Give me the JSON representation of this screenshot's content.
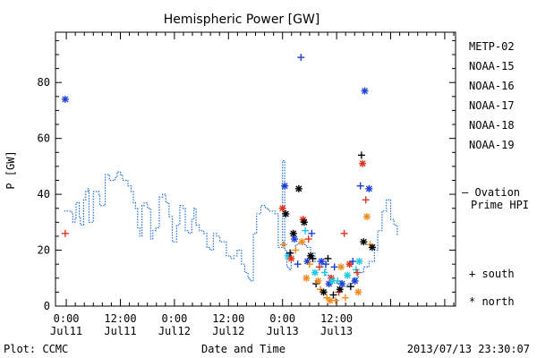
{
  "chart_data": {
    "type": "scatter",
    "title": "Hemispheric Power [GW]",
    "xlabel": "Date and Time",
    "ylabel": "P [GW]",
    "ylim": [
      0,
      98
    ],
    "yticks": [
      0,
      20,
      40,
      60,
      80
    ],
    "xlim": [
      -0.1,
      3.6
    ],
    "xticks": [
      {
        "x": 0.0,
        "line1": "0:00",
        "line2": "Jul11"
      },
      {
        "x": 0.5,
        "line1": "12:00",
        "line2": "Jul11"
      },
      {
        "x": 1.0,
        "line1": "0:00",
        "line2": "Jul12"
      },
      {
        "x": 1.5,
        "line1": "12:00",
        "line2": "Jul12"
      },
      {
        "x": 2.0,
        "line1": "0:00",
        "line2": "Jul13"
      },
      {
        "x": 2.5,
        "line1": "12:00",
        "line2": "Jul13"
      }
    ],
    "footer_left": "Plot: CCMC",
    "footer_right": "2013/07/13 23:30:07",
    "legend": {
      "satellites": [
        {
          "name": "METP-02",
          "color": "#000000"
        },
        {
          "name": "NOAA-15",
          "color": "#1f3fd9"
        },
        {
          "name": "NOAA-16",
          "color": "#1fc8e0"
        },
        {
          "name": "NOAA-17",
          "color": "#3ddc7a"
        },
        {
          "name": "NOAA-18",
          "color": "#f08c1e"
        },
        {
          "name": "NOAA-19",
          "color": "#e0321e"
        }
      ],
      "ovation_line1": "– Ovation",
      "ovation_line2": "Prime HPI",
      "ovation_color": "#1f6fd9",
      "south_label": "+ south",
      "north_label": "* north"
    },
    "ovation_series": [
      [
        -0.02,
        34
      ],
      [
        0.03,
        34
      ],
      [
        0.05,
        33
      ],
      [
        0.06,
        30
      ],
      [
        0.08,
        31
      ],
      [
        0.09,
        37
      ],
      [
        0.11,
        37
      ],
      [
        0.12,
        32
      ],
      [
        0.13,
        29
      ],
      [
        0.15,
        29
      ],
      [
        0.16,
        38
      ],
      [
        0.18,
        41
      ],
      [
        0.2,
        42
      ],
      [
        0.21,
        30
      ],
      [
        0.23,
        30
      ],
      [
        0.25,
        41
      ],
      [
        0.28,
        41
      ],
      [
        0.3,
        40
      ],
      [
        0.31,
        36
      ],
      [
        0.34,
        36
      ],
      [
        0.36,
        47
      ],
      [
        0.4,
        45
      ],
      [
        0.43,
        45
      ],
      [
        0.45,
        46
      ],
      [
        0.47,
        48
      ],
      [
        0.5,
        47
      ],
      [
        0.52,
        45
      ],
      [
        0.54,
        45
      ],
      [
        0.57,
        43
      ],
      [
        0.6,
        41
      ],
      [
        0.62,
        37
      ],
      [
        0.64,
        35
      ],
      [
        0.66,
        28
      ],
      [
        0.68,
        25
      ],
      [
        0.7,
        36
      ],
      [
        0.72,
        37
      ],
      [
        0.75,
        35
      ],
      [
        0.78,
        24
      ],
      [
        0.8,
        27
      ],
      [
        0.83,
        28
      ],
      [
        0.86,
        39
      ],
      [
        0.89,
        40
      ],
      [
        0.92,
        37
      ],
      [
        0.95,
        32
      ],
      [
        0.98,
        23
      ],
      [
        1.0,
        23
      ],
      [
        1.02,
        29
      ],
      [
        1.05,
        36
      ],
      [
        1.08,
        35
      ],
      [
        1.1,
        27
      ],
      [
        1.13,
        26
      ],
      [
        1.16,
        31
      ],
      [
        1.18,
        35
      ],
      [
        1.2,
        29
      ],
      [
        1.23,
        27
      ],
      [
        1.27,
        26
      ],
      [
        1.3,
        21
      ],
      [
        1.33,
        20
      ],
      [
        1.36,
        26
      ],
      [
        1.39,
        25
      ],
      [
        1.42,
        23
      ],
      [
        1.45,
        23
      ],
      [
        1.48,
        18
      ],
      [
        1.52,
        17
      ],
      [
        1.55,
        18
      ],
      [
        1.58,
        20
      ],
      [
        1.62,
        15
      ],
      [
        1.65,
        12
      ],
      [
        1.68,
        10
      ],
      [
        1.7,
        9
      ],
      [
        1.73,
        26
      ],
      [
        1.76,
        33
      ],
      [
        1.8,
        36
      ],
      [
        1.84,
        35
      ],
      [
        1.87,
        34
      ],
      [
        1.9,
        34
      ],
      [
        1.93,
        33
      ],
      [
        1.96,
        21
      ],
      [
        1.98,
        21
      ],
      [
        2.0,
        52
      ],
      [
        2.02,
        20
      ],
      [
        2.04,
        14
      ],
      [
        2.06,
        13
      ],
      [
        2.08,
        20
      ],
      [
        2.12,
        22
      ],
      [
        2.15,
        23
      ],
      [
        2.18,
        22
      ],
      [
        2.22,
        21
      ],
      [
        2.26,
        19
      ],
      [
        2.3,
        16
      ],
      [
        2.33,
        16
      ],
      [
        2.36,
        14
      ],
      [
        2.4,
        11
      ],
      [
        2.45,
        9
      ],
      [
        2.5,
        8
      ],
      [
        2.55,
        7
      ],
      [
        2.6,
        8
      ],
      [
        2.65,
        10
      ],
      [
        2.7,
        12
      ],
      [
        2.75,
        14
      ],
      [
        2.8,
        16
      ],
      [
        2.85,
        20
      ],
      [
        2.88,
        27
      ],
      [
        2.92,
        34
      ],
      [
        2.96,
        38
      ],
      [
        3.0,
        31
      ],
      [
        3.03,
        29
      ],
      [
        3.06,
        25
      ]
    ],
    "points": [
      {
        "x": -0.01,
        "y": 74,
        "sat": "NOAA-15",
        "hemi": "north"
      },
      {
        "x": -0.01,
        "y": 26,
        "sat": "NOAA-19",
        "hemi": "south"
      },
      {
        "x": 2.0,
        "y": 35,
        "sat": "NOAA-19",
        "hemi": "north"
      },
      {
        "x": 2.02,
        "y": 43,
        "sat": "NOAA-15",
        "hemi": "north"
      },
      {
        "x": 2.03,
        "y": 33,
        "sat": "METP-02",
        "hemi": "north"
      },
      {
        "x": 2.01,
        "y": 22,
        "sat": "NOAA-18",
        "hemi": "south"
      },
      {
        "x": 2.05,
        "y": 18,
        "sat": "NOAA-16",
        "hemi": "north"
      },
      {
        "x": 2.07,
        "y": 19,
        "sat": "METP-02",
        "hemi": "south"
      },
      {
        "x": 2.08,
        "y": 17,
        "sat": "NOAA-19",
        "hemi": "north"
      },
      {
        "x": 2.1,
        "y": 26,
        "sat": "METP-02",
        "hemi": "north"
      },
      {
        "x": 2.11,
        "y": 24,
        "sat": "NOAA-15",
        "hemi": "north"
      },
      {
        "x": 2.12,
        "y": 20,
        "sat": "NOAA-18",
        "hemi": "south"
      },
      {
        "x": 2.14,
        "y": 15,
        "sat": "NOAA-15",
        "hemi": "south"
      },
      {
        "x": 2.15,
        "y": 42,
        "sat": "METP-02",
        "hemi": "north"
      },
      {
        "x": 2.17,
        "y": 89,
        "sat": "NOAA-15",
        "hemi": "south"
      },
      {
        "x": 2.18,
        "y": 23,
        "sat": "NOAA-18",
        "hemi": "north"
      },
      {
        "x": 2.19,
        "y": 31,
        "sat": "NOAA-19",
        "hemi": "north"
      },
      {
        "x": 2.2,
        "y": 30,
        "sat": "METP-02",
        "hemi": "north"
      },
      {
        "x": 2.21,
        "y": 27,
        "sat": "NOAA-16",
        "hemi": "south"
      },
      {
        "x": 2.22,
        "y": 10,
        "sat": "NOAA-18",
        "hemi": "north"
      },
      {
        "x": 2.23,
        "y": 16,
        "sat": "NOAA-15",
        "hemi": "north"
      },
      {
        "x": 2.24,
        "y": 24,
        "sat": "NOAA-19",
        "hemi": "south"
      },
      {
        "x": 2.25,
        "y": 15,
        "sat": "NOAA-18",
        "hemi": "south"
      },
      {
        "x": 2.26,
        "y": 18,
        "sat": "METP-02",
        "hemi": "north"
      },
      {
        "x": 2.27,
        "y": 26,
        "sat": "NOAA-15",
        "hemi": "south"
      },
      {
        "x": 2.28,
        "y": 17,
        "sat": "METP-02",
        "hemi": "south"
      },
      {
        "x": 2.3,
        "y": 12,
        "sat": "NOAA-16",
        "hemi": "north"
      },
      {
        "x": 2.31,
        "y": 8,
        "sat": "METP-02",
        "hemi": "south"
      },
      {
        "x": 2.33,
        "y": 9,
        "sat": "NOAA-18",
        "hemi": "north"
      },
      {
        "x": 2.34,
        "y": 14,
        "sat": "NOAA-19",
        "hemi": "south"
      },
      {
        "x": 2.35,
        "y": 6,
        "sat": "NOAA-18",
        "hemi": "south"
      },
      {
        "x": 2.36,
        "y": 16,
        "sat": "NOAA-15",
        "hemi": "north"
      },
      {
        "x": 2.38,
        "y": 5,
        "sat": "METP-02",
        "hemi": "north"
      },
      {
        "x": 2.39,
        "y": 12,
        "sat": "NOAA-16",
        "hemi": "south"
      },
      {
        "x": 2.4,
        "y": 15,
        "sat": "NOAA-15",
        "hemi": "south"
      },
      {
        "x": 2.41,
        "y": 3,
        "sat": "NOAA-18",
        "hemi": "south"
      },
      {
        "x": 2.42,
        "y": 17,
        "sat": "METP-02",
        "hemi": "south"
      },
      {
        "x": 2.43,
        "y": 8,
        "sat": "NOAA-15",
        "hemi": "north"
      },
      {
        "x": 2.44,
        "y": 2,
        "sat": "NOAA-18",
        "hemi": "north"
      },
      {
        "x": 2.45,
        "y": 10,
        "sat": "NOAA-19",
        "hemi": "north"
      },
      {
        "x": 2.46,
        "y": 9,
        "sat": "NOAA-16",
        "hemi": "north"
      },
      {
        "x": 2.47,
        "y": 4,
        "sat": "METP-02",
        "hemi": "south"
      },
      {
        "x": 2.48,
        "y": 14,
        "sat": "NOAA-15",
        "hemi": "south"
      },
      {
        "x": 2.49,
        "y": 2,
        "sat": "NOAA-18",
        "hemi": "south"
      },
      {
        "x": 2.51,
        "y": 9,
        "sat": "NOAA-16",
        "hemi": "south"
      },
      {
        "x": 2.52,
        "y": 5,
        "sat": "NOAA-19",
        "hemi": "south"
      },
      {
        "x": 2.53,
        "y": 6,
        "sat": "METP-02",
        "hemi": "north"
      },
      {
        "x": 2.54,
        "y": 14,
        "sat": "NOAA-18",
        "hemi": "north"
      },
      {
        "x": 2.55,
        "y": 8,
        "sat": "NOAA-15",
        "hemi": "north"
      },
      {
        "x": 2.57,
        "y": 26,
        "sat": "NOAA-19",
        "hemi": "south"
      },
      {
        "x": 2.58,
        "y": 3,
        "sat": "NOAA-18",
        "hemi": "south"
      },
      {
        "x": 2.6,
        "y": 11,
        "sat": "NOAA-16",
        "hemi": "north"
      },
      {
        "x": 2.62,
        "y": 15,
        "sat": "NOAA-19",
        "hemi": "north"
      },
      {
        "x": 2.63,
        "y": 7,
        "sat": "METP-02",
        "hemi": "south"
      },
      {
        "x": 2.65,
        "y": 16,
        "sat": "NOAA-15",
        "hemi": "south"
      },
      {
        "x": 2.67,
        "y": 9,
        "sat": "NOAA-15",
        "hemi": "north"
      },
      {
        "x": 2.68,
        "y": 13,
        "sat": "NOAA-16",
        "hemi": "south"
      },
      {
        "x": 2.7,
        "y": 5,
        "sat": "NOAA-18",
        "hemi": "north"
      },
      {
        "x": 2.72,
        "y": 43,
        "sat": "NOAA-15",
        "hemi": "south"
      },
      {
        "x": 2.73,
        "y": 54,
        "sat": "METP-02",
        "hemi": "south"
      },
      {
        "x": 2.74,
        "y": 51,
        "sat": "NOAA-19",
        "hemi": "north"
      },
      {
        "x": 2.76,
        "y": 77,
        "sat": "NOAA-15",
        "hemi": "north"
      },
      {
        "x": 2.77,
        "y": 38,
        "sat": "NOAA-19",
        "hemi": "south"
      },
      {
        "x": 2.75,
        "y": 23,
        "sat": "METP-02",
        "hemi": "north"
      },
      {
        "x": 2.78,
        "y": 32,
        "sat": "NOAA-18",
        "hemi": "north"
      },
      {
        "x": 2.8,
        "y": 42,
        "sat": "NOAA-15",
        "hemi": "north"
      },
      {
        "x": 2.81,
        "y": 22,
        "sat": "NOAA-18",
        "hemi": "south"
      },
      {
        "x": 2.83,
        "y": 21,
        "sat": "METP-02",
        "hemi": "north"
      },
      {
        "x": 2.71,
        "y": 16,
        "sat": "NOAA-16",
        "hemi": "north"
      },
      {
        "x": 2.69,
        "y": 12,
        "sat": "NOAA-19",
        "hemi": "south"
      }
    ]
  }
}
